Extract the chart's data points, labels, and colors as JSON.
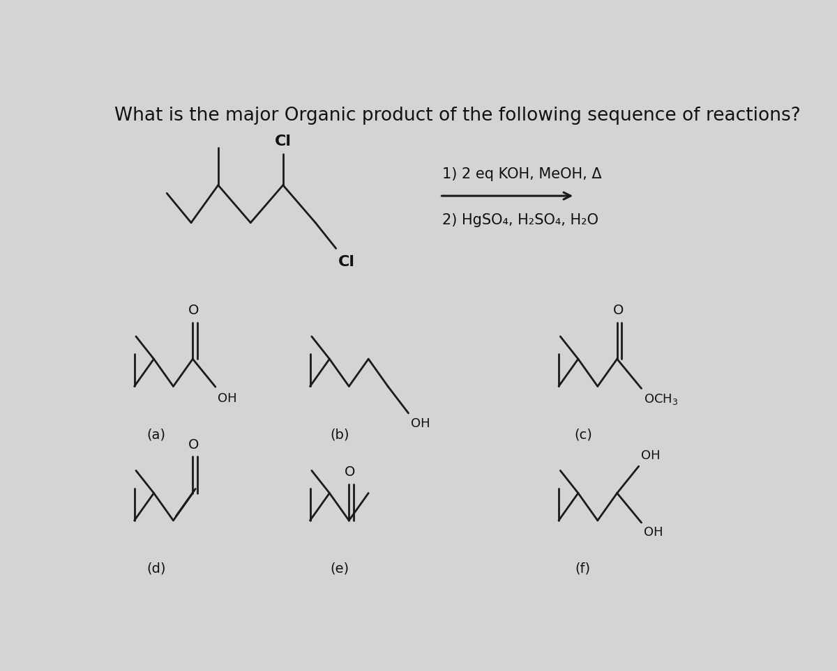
{
  "title": "What is the major Organic product of the following sequence of reactions?",
  "title_fontsize": 19,
  "bg_color": "#d4d4d4",
  "line_color": "#1a1a1a",
  "text_color": "#111111",
  "lw": 2.0,
  "step1": "1) 2 eq KOH, MeOH, Δ",
  "step2": "2) HgSO₄, H₂SO₄, H₂O",
  "la": "(a)",
  "lb": "(b)",
  "lc": "(c)",
  "ld": "(d)",
  "le": "(e)",
  "lf": "(f)",
  "Cl": "Cl",
  "O": "O",
  "OH": "OH",
  "OCH3": "OCH$_3$"
}
